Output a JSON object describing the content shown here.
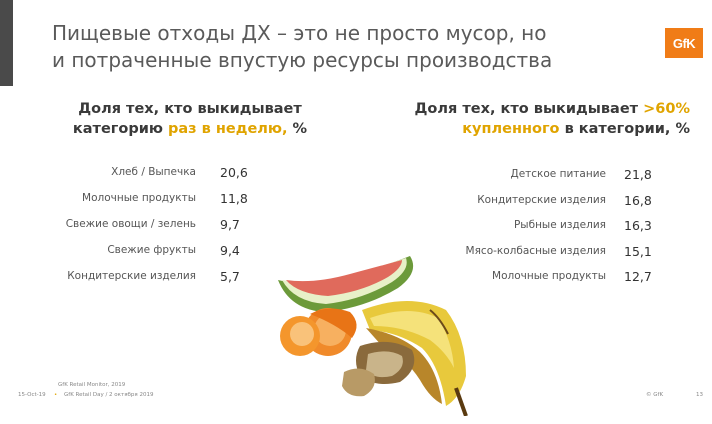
{
  "title_line1": "Пищевые отходы ДХ – это не просто мусор, но",
  "title_line2": "и потраченные впустую ресурсы производства",
  "logo_text": "GfK",
  "left_heading": {
    "line1": "Доля тех, кто выкидывает",
    "line2_pre": "категорию ",
    "line2_hl": "раз в неделю,",
    "line2_post": " %"
  },
  "right_heading": {
    "line1_pre": "Доля тех, кто выкидывает ",
    "line1_hl": ">60%",
    "line2_hl": "купленного",
    "line2_post": " в категории, %"
  },
  "left_rows": [
    {
      "label": "Хлеб / Выпечка",
      "value": "20,6"
    },
    {
      "label": "Молочные продукты",
      "value": "11,8"
    },
    {
      "label": "Свежие овощи / зелень",
      "value": "9,7"
    },
    {
      "label": "Свежие фрукты",
      "value": "9,4"
    },
    {
      "label": "Кондитерские изделия",
      "value": "5,7"
    }
  ],
  "right_rows": [
    {
      "label": "Детское питание",
      "value": "21,8"
    },
    {
      "label": "Кондитерские изделия",
      "value": "16,8"
    },
    {
      "label": "Рыбные изделия",
      "value": "16,3"
    },
    {
      "label": "Мясо-колбасные изделия",
      "value": "15,1"
    },
    {
      "label": "Молочные продукты",
      "value": "12,7"
    }
  ],
  "footer": {
    "date": "15-Oct-19",
    "source1": "GfK Retail Monitor, 2019",
    "source2": "GfK Retail Day / 2 октября 2019",
    "copyright": "© GfK",
    "page": "13"
  },
  "colors": {
    "accent": "#e0a400",
    "logo": "#f07c17",
    "bar": "#4a4a4a"
  },
  "icons": {
    "image": "food-waste-photo"
  }
}
